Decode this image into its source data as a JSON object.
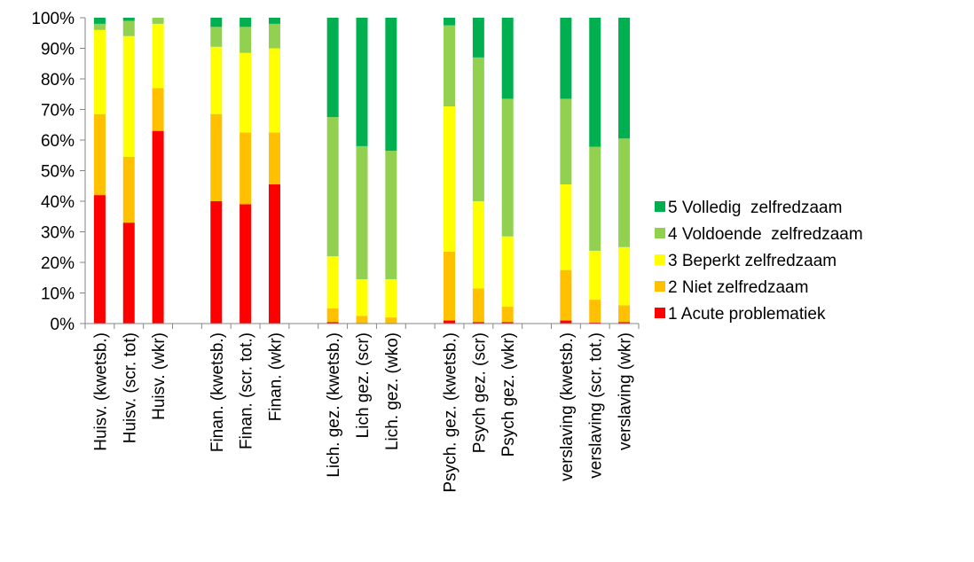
{
  "chart_data": {
    "type": "bar",
    "stacked": true,
    "normalized_percent": true,
    "ylim": [
      0,
      100
    ],
    "y_ticks": [
      "0%",
      "10%",
      "20%",
      "30%",
      "40%",
      "50%",
      "60%",
      "70%",
      "80%",
      "90%",
      "100%"
    ],
    "legend_position": "right",
    "categories": [
      "Huisv. (kwetsb.)",
      "Huisv. (scr. tot)",
      "Huisv. (wkr)",
      "",
      "Finan. (kwetsb.)",
      "Finan. (scr. tot.)",
      "Finan. (wkr)",
      "",
      "Lich. gez. (kwetsb.)",
      "Lich gez. (scr)",
      "Lich. gez. (wko)",
      "",
      "Psych. gez. (kwetsb.)",
      "Psych gez. (scr)",
      "Psych gez. (wkr)",
      "",
      "verslaving (kwetsb.)",
      "verslaving (scr. tot.)",
      "verslaving (wkr)"
    ],
    "series": [
      {
        "name": "1 Acute problematiek",
        "color": "#ff0000",
        "values": [
          42,
          33,
          63,
          0,
          40,
          39,
          45.5,
          0,
          0.5,
          0,
          0,
          0,
          1,
          0.5,
          0.5,
          0,
          1,
          0.3,
          0.5
        ]
      },
      {
        "name": "2 Niet zelfredzaam",
        "color": "#ffc000",
        "values": [
          26.5,
          21.5,
          14,
          0,
          28.5,
          23.5,
          17,
          0,
          4.5,
          2.5,
          2,
          0,
          22.5,
          11,
          5,
          0,
          16.5,
          7.5,
          5.5
        ]
      },
      {
        "name": "3 Beperkt zelfredzaam",
        "color": "#ffff00",
        "values": [
          27.5,
          39.5,
          21,
          0,
          22,
          26,
          27.5,
          0,
          17,
          12,
          12.5,
          0,
          47.5,
          28.5,
          23,
          0,
          28,
          16,
          19
        ]
      },
      {
        "name": "4 Voldoende  zelfredzaam",
        "color": "#92d050",
        "values": [
          2,
          5,
          2,
          0,
          6.5,
          8.5,
          8,
          0,
          45.5,
          43.5,
          42,
          0,
          26.5,
          47,
          45,
          0,
          28,
          34,
          35.5
        ]
      },
      {
        "name": "5 Volledig  zelfredzaam",
        "color": "#00b050",
        "values": [
          2,
          1,
          0,
          0,
          3,
          3,
          2,
          0,
          32.5,
          42,
          43.5,
          0,
          2.5,
          13,
          26.5,
          0,
          26.5,
          42.2,
          39.5
        ]
      }
    ]
  }
}
